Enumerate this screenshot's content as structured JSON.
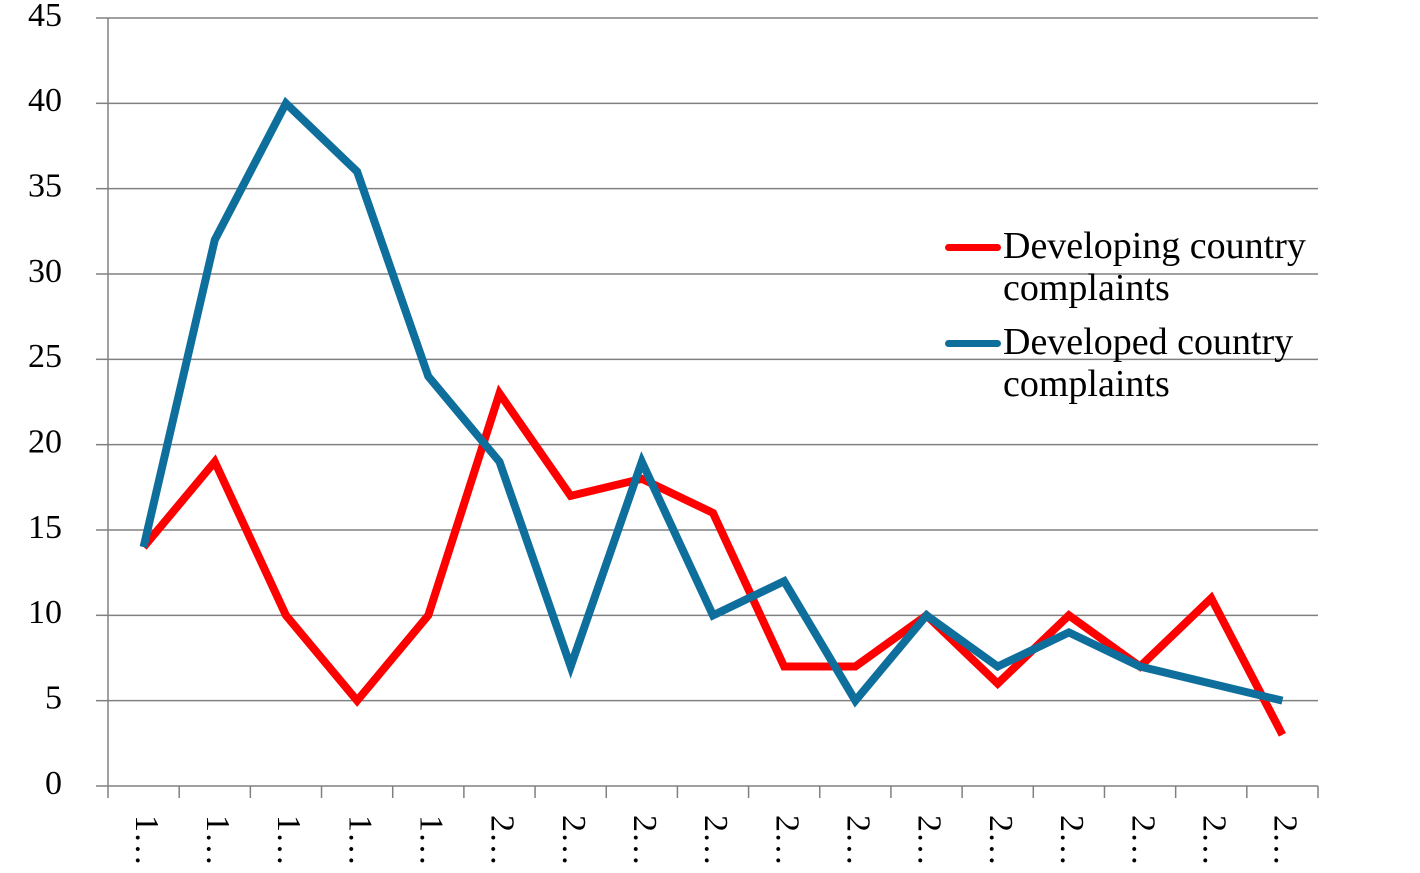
{
  "chart_data": {
    "type": "line",
    "categories": [
      "1…",
      "1…",
      "1…",
      "1…",
      "1…",
      "2…",
      "2…",
      "2…",
      "2…",
      "2…",
      "2…",
      "2…",
      "2…",
      "2…",
      "2…",
      "2…",
      "2…"
    ],
    "series": [
      {
        "name": "Developing country complaints",
        "color": "#ff0000",
        "values": [
          14,
          19,
          10,
          5,
          10,
          23,
          17,
          18,
          16,
          7,
          7,
          10,
          6,
          10,
          7,
          11,
          3
        ]
      },
      {
        "name": "Developed country complaints",
        "color": "#0f6f9c",
        "values": [
          14,
          32,
          40,
          36,
          24,
          19,
          7,
          19,
          10,
          12,
          5,
          10,
          7,
          9,
          7,
          6,
          5
        ]
      }
    ],
    "ylim": [
      0,
      45
    ],
    "yticks": [
      0,
      5,
      10,
      15,
      20,
      25,
      30,
      35,
      40,
      45
    ],
    "grid": true,
    "legend": "right"
  }
}
